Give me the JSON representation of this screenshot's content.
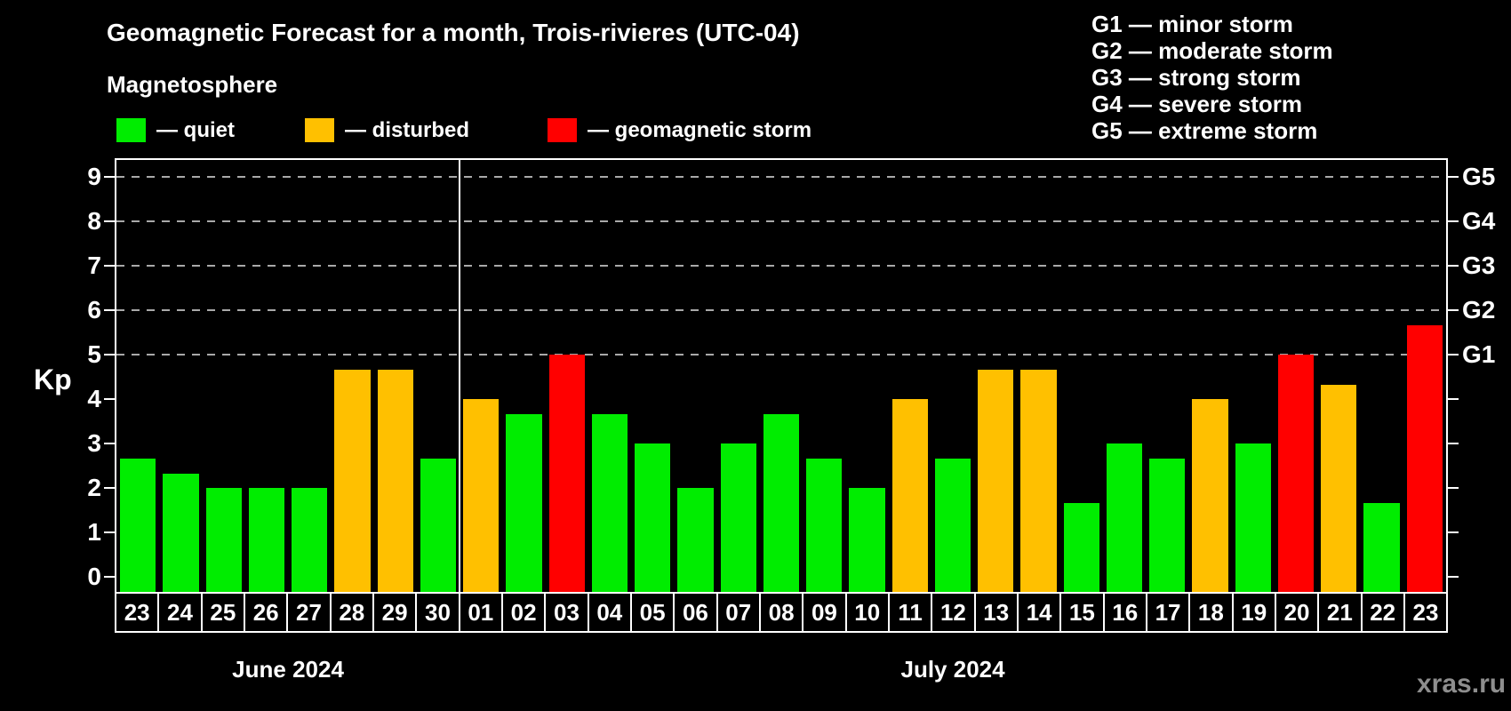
{
  "header": {
    "title": "Geomagnetic Forecast for a month, Trois-rivieres (UTC-04)",
    "subtitle": "Magnetosphere"
  },
  "legend": {
    "items": [
      {
        "name": "quiet",
        "label": "— quiet",
        "color": "#00ed00",
        "x": 131
      },
      {
        "name": "disturbed",
        "label": "— disturbed",
        "color": "#ffc000",
        "x": 343
      },
      {
        "name": "geomagnetic-storm",
        "label": "— geomagnetic storm",
        "color": "#ff0000",
        "x": 616
      }
    ]
  },
  "g_legend": [
    "G1 — minor storm",
    "G2 — moderate storm",
    "G3 — strong storm",
    "G4 — severe storm",
    "G5 — extreme storm"
  ],
  "chart_data": {
    "type": "bar",
    "title": "Geomagnetic Forecast for a month, Trois-rivieres (UTC-04)",
    "ylabel": "Kp",
    "ylim": [
      0,
      9
    ],
    "yticks": [
      0,
      1,
      2,
      3,
      4,
      5,
      6,
      7,
      8,
      9
    ],
    "gridlines_at": [
      5,
      6,
      7,
      8,
      9
    ],
    "grid_style": "dashed",
    "right_axis_labels": [
      {
        "kp": 5,
        "label": "G1"
      },
      {
        "kp": 6,
        "label": "G2"
      },
      {
        "kp": 7,
        "label": "G3"
      },
      {
        "kp": 8,
        "label": "G4"
      },
      {
        "kp": 9,
        "label": "G5"
      }
    ],
    "categories": [
      "23",
      "24",
      "25",
      "26",
      "27",
      "28",
      "29",
      "30",
      "01",
      "02",
      "03",
      "04",
      "05",
      "06",
      "07",
      "08",
      "09",
      "10",
      "11",
      "12",
      "13",
      "14",
      "15",
      "16",
      "17",
      "18",
      "19",
      "20",
      "21",
      "22",
      "23"
    ],
    "values": [
      2.67,
      2.33,
      2.0,
      2.0,
      2.0,
      4.67,
      4.67,
      2.67,
      4.0,
      3.67,
      5.0,
      3.67,
      3.0,
      2.0,
      3.0,
      3.67,
      2.67,
      2.0,
      4.0,
      2.67,
      4.67,
      4.67,
      1.67,
      3.0,
      2.67,
      4.0,
      3.0,
      5.0,
      4.33,
      1.67,
      5.67
    ],
    "color_rule": {
      "quiet_below": 4,
      "disturbed_below": 5,
      "storm_at_or_above": 5
    },
    "palette": {
      "quiet": "#00ed00",
      "disturbed": "#ffc000",
      "storm": "#ff0000"
    },
    "months": [
      {
        "label": "June 2024",
        "days": 8
      },
      {
        "label": "July 2024",
        "days": 23
      }
    ],
    "legend_position": "top-left"
  },
  "watermark": "xras.ru"
}
